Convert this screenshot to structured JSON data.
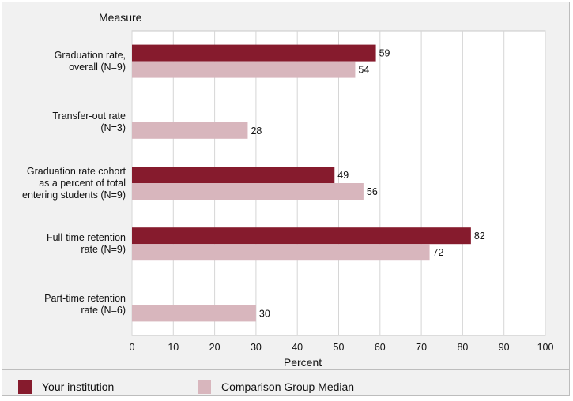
{
  "chart_data": {
    "type": "bar",
    "orientation": "horizontal",
    "yaxis_title": "Measure",
    "xlabel": "Percent",
    "xlim": [
      0,
      100
    ],
    "xticks": [
      0,
      10,
      20,
      30,
      40,
      50,
      60,
      70,
      80,
      90,
      100
    ],
    "grid": true,
    "legend_placement": "bottom",
    "categories": [
      [
        "Graduation rate,",
        "overall (N=9)"
      ],
      [
        "Transfer-out rate",
        "(N=3)"
      ],
      [
        "Graduation rate cohort",
        "as a percent of total",
        "entering students (N=9)"
      ],
      [
        "Full-time retention",
        "rate (N=9)"
      ],
      [
        "Part-time retention",
        "rate (N=6)"
      ]
    ],
    "series": [
      {
        "name": "Your institution",
        "color": "#861b2d",
        "values": [
          59,
          null,
          49,
          82,
          null
        ]
      },
      {
        "name": "Comparison Group Median",
        "color": "#d8b6bd",
        "values": [
          54,
          28,
          56,
          72,
          30
        ]
      }
    ]
  }
}
